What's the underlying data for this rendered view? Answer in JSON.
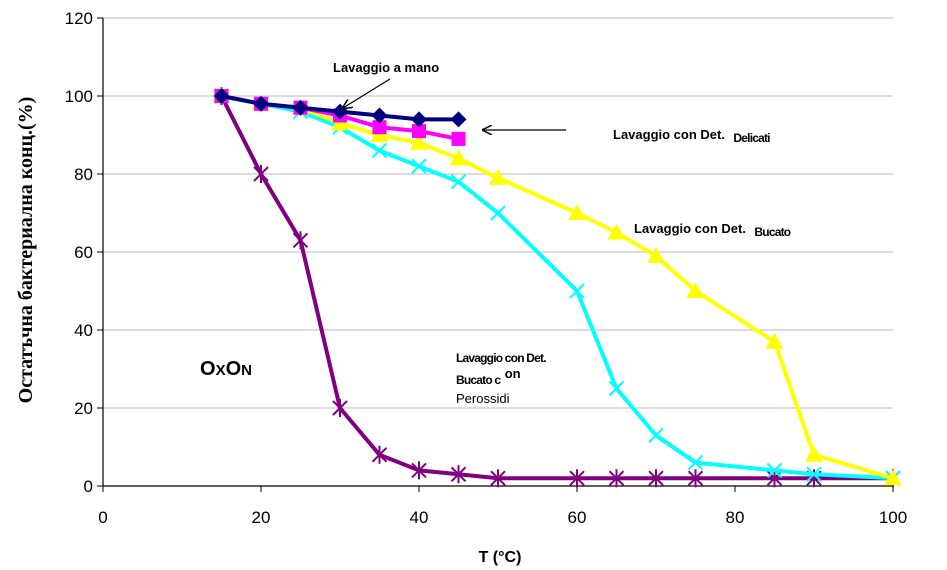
{
  "chart_data": {
    "type": "line",
    "xlabel": "T (°C)",
    "ylabel": "Остатъчна бактериална конц.(%)",
    "xlim": [
      0,
      100
    ],
    "ylim": [
      0,
      120
    ],
    "x_ticks": [
      "0",
      "20",
      "40",
      "60",
      "80",
      "100"
    ],
    "y_ticks": [
      "0",
      "20",
      "40",
      "60",
      "80",
      "100",
      "120"
    ],
    "grid": "horizontal",
    "legend": "none",
    "series": [
      {
        "color": "#00007f",
        "marker": "diamond",
        "points": [
          [
            15,
            100
          ],
          [
            20,
            98
          ],
          [
            25,
            97
          ],
          [
            30,
            96
          ],
          [
            35,
            95
          ],
          [
            40,
            94
          ],
          [
            45,
            94
          ]
        ]
      },
      {
        "color": "#ff00ff",
        "marker": "square",
        "points": [
          [
            15,
            100
          ],
          [
            20,
            98
          ],
          [
            25,
            97
          ],
          [
            30,
            95
          ],
          [
            35,
            92
          ],
          [
            40,
            91
          ],
          [
            45,
            89
          ]
        ]
      },
      {
        "color": "#ffff00",
        "marker": "triangle",
        "points": [
          [
            15,
            100
          ],
          [
            20,
            98
          ],
          [
            25,
            97
          ],
          [
            30,
            93
          ],
          [
            35,
            90
          ],
          [
            40,
            88
          ],
          [
            45,
            84
          ],
          [
            50,
            79
          ],
          [
            60,
            70
          ],
          [
            65,
            65
          ],
          [
            70,
            59
          ],
          [
            75,
            50
          ],
          [
            85,
            37
          ],
          [
            90,
            8
          ],
          [
            100,
            2
          ]
        ]
      },
      {
        "color": "#00ffff",
        "marker": "x",
        "points": [
          [
            15,
            100
          ],
          [
            20,
            98
          ],
          [
            25,
            96
          ],
          [
            30,
            92
          ],
          [
            35,
            86
          ],
          [
            40,
            82
          ],
          [
            45,
            78
          ],
          [
            50,
            70
          ],
          [
            60,
            50
          ],
          [
            65,
            25
          ],
          [
            70,
            13
          ],
          [
            75,
            6
          ],
          [
            85,
            4
          ],
          [
            90,
            3
          ],
          [
            100,
            2
          ]
        ]
      },
      {
        "color": "#800080",
        "marker": "asterisk",
        "points": [
          [
            15,
            100
          ],
          [
            20,
            80
          ],
          [
            25,
            63
          ],
          [
            30,
            20
          ],
          [
            35,
            8
          ],
          [
            40,
            4
          ],
          [
            45,
            3
          ],
          [
            50,
            2
          ],
          [
            60,
            2
          ],
          [
            65,
            2
          ],
          [
            70,
            2
          ],
          [
            75,
            2
          ],
          [
            85,
            2
          ],
          [
            90,
            2
          ],
          [
            100,
            2
          ]
        ]
      }
    ],
    "annotations": {
      "hand_wash": "Lavaggio a mano",
      "delicati_main": "Lavaggio con Det.",
      "delicati_sub": "Delicati",
      "bucato_main": "Lavaggio con Det.",
      "bucato_sub": "Bucato",
      "perox_line1": "Lavaggio con Det.",
      "perox_line2": "Bucato c",
      "perox_line2_sup": "on",
      "perox_line3": "Perossidi",
      "brand": "OxOn"
    }
  }
}
